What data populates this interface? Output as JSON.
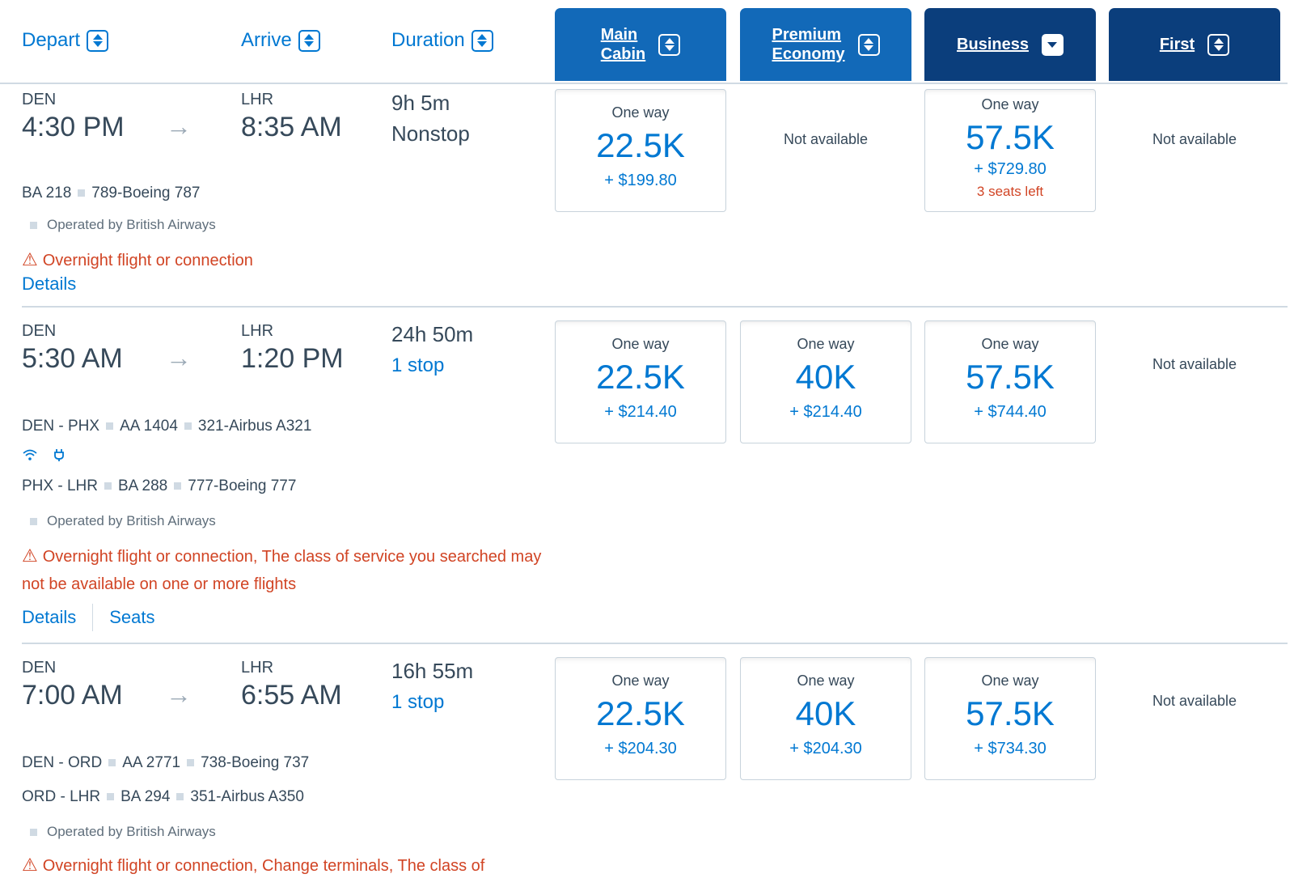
{
  "header": {
    "depart": "Depart",
    "arrive": "Arrive",
    "duration": "Duration",
    "cabins": [
      {
        "label": "Main\nCabin",
        "sort": "both"
      },
      {
        "label": "Premium\nEconomy",
        "sort": "both"
      },
      {
        "label": "Business",
        "sort": "down"
      },
      {
        "label": "First",
        "sort": "both"
      }
    ]
  },
  "icons": {
    "sort": "sort-icon",
    "arrow": "arrow-right-icon",
    "warning": "warning-icon",
    "wifi": "wifi-icon",
    "power": "power-icon"
  },
  "colors": {
    "link": "#0078d2",
    "cabin_light": "#1269b8",
    "cabin_dark": "#0b3e7c",
    "warning": "#d14424"
  },
  "flights": [
    {
      "origin": "DEN",
      "depart_time": "4:30 PM",
      "destination": "LHR",
      "arrive_time": "8:35 AM",
      "duration": "9h 5m",
      "stops": "Nonstop",
      "seg1": {
        "route": "",
        "flight": "BA 218",
        "aircraft": "789-Boeing 787"
      },
      "operated": "Operated by British Airways",
      "warning": "Overnight flight or connection",
      "details": "Details",
      "fares": [
        {
          "label": "One way",
          "points": "22.5K",
          "tax": "+ $199.80"
        },
        {
          "na": "Not available"
        },
        {
          "label": "One way",
          "points": "57.5K",
          "tax": "+ $729.80",
          "seats_left": "3 seats left"
        },
        {
          "na": "Not available"
        }
      ]
    },
    {
      "origin": "DEN",
      "depart_time": "5:30 AM",
      "destination": "LHR",
      "arrive_time": "1:20 PM",
      "duration": "24h 50m",
      "stops": "1 stop",
      "seg1": {
        "route": "DEN - PHX",
        "flight": "AA 1404",
        "aircraft": "321-Airbus A321"
      },
      "seg2": {
        "route": "PHX - LHR",
        "flight": "BA 288",
        "aircraft": "777-Boeing 777"
      },
      "operated": "Operated by British Airways",
      "warning": "Overnight flight or connection, The class of service you searched may not be available on one or more flights",
      "details": "Details",
      "seats": "Seats",
      "fares": [
        {
          "label": "One way",
          "points": "22.5K",
          "tax": "+ $214.40"
        },
        {
          "label": "One way",
          "points": "40K",
          "tax": "+ $214.40"
        },
        {
          "label": "One way",
          "points": "57.5K",
          "tax": "+ $744.40"
        },
        {
          "na": "Not available"
        }
      ]
    },
    {
      "origin": "DEN",
      "depart_time": "7:00 AM",
      "destination": "LHR",
      "arrive_time": "6:55 AM",
      "duration": "16h 55m",
      "stops": "1 stop",
      "seg1": {
        "route": "DEN - ORD",
        "flight": "AA 2771",
        "aircraft": "738-Boeing 737"
      },
      "seg2": {
        "route": "ORD - LHR",
        "flight": "BA 294",
        "aircraft": "351-Airbus A350"
      },
      "operated": "Operated by British Airways",
      "warning": "Overnight flight or connection, Change terminals, The class of",
      "fares": [
        {
          "label": "One way",
          "points": "22.5K",
          "tax": "+ $204.30"
        },
        {
          "label": "One way",
          "points": "40K",
          "tax": "+ $204.30"
        },
        {
          "label": "One way",
          "points": "57.5K",
          "tax": "+ $734.30"
        },
        {
          "na": "Not available"
        }
      ]
    }
  ]
}
